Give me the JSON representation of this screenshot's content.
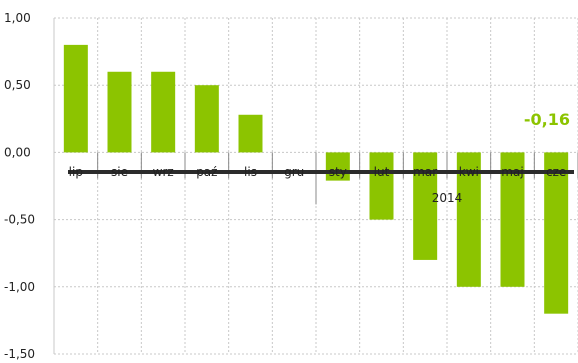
{
  "chart_data": {
    "type": "bar",
    "categories": [
      "lip",
      "sie",
      "wrz",
      "paź",
      "lis",
      "gru",
      "sty",
      "lut",
      "mar",
      "kwi",
      "maj",
      "cze"
    ],
    "values": [
      0.8,
      0.6,
      0.6,
      0.5,
      0.28,
      0.0,
      -0.21,
      -0.5,
      -0.8,
      -1.0,
      -1.0,
      -1.2
    ],
    "ylim": [
      -1.5,
      1.0
    ],
    "yticks": [
      1.0,
      0.5,
      0.0,
      -0.5,
      -1.0,
      -1.5
    ],
    "ytick_labels": [
      "1,00",
      "0,50",
      "0,00",
      "-0,50",
      "-1,00",
      "-1,50"
    ],
    "year_label": "2014",
    "callout": "-0,16",
    "grid": true,
    "bar_color": "#8cc400",
    "callout_color": "#8cc400"
  }
}
